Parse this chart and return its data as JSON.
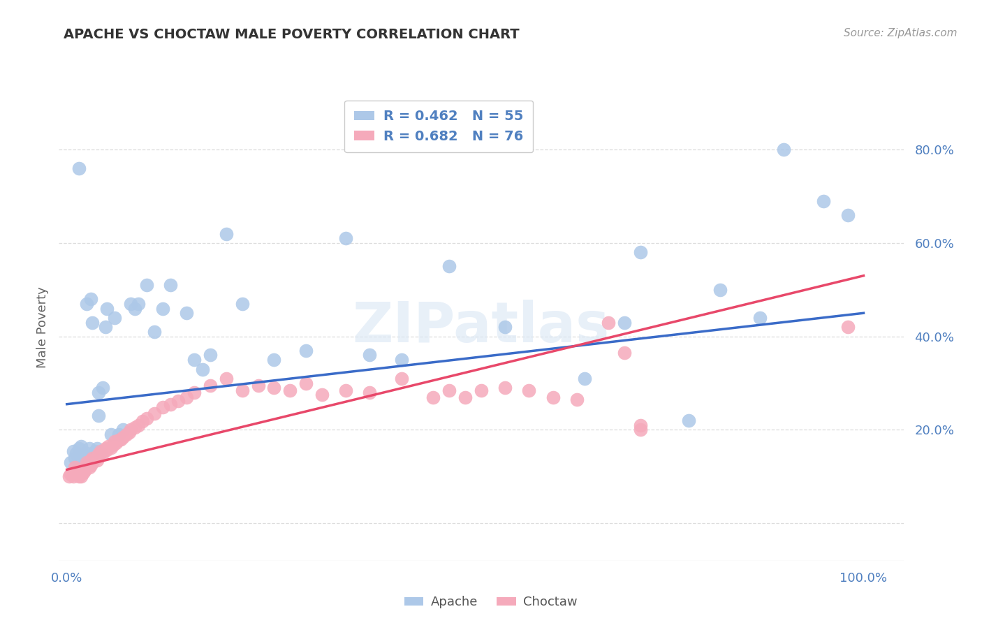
{
  "title": "APACHE VS CHOCTAW MALE POVERTY CORRELATION CHART",
  "source": "Source: ZipAtlas.com",
  "ylabel": "Male Poverty",
  "xlim": [
    -0.01,
    1.05
  ],
  "ylim": [
    -0.08,
    0.92
  ],
  "apache_R": 0.462,
  "apache_N": 55,
  "choctaw_R": 0.682,
  "choctaw_N": 76,
  "apache_color": "#adc8e8",
  "choctaw_color": "#f5aabb",
  "apache_line_color": "#3a6bc8",
  "choctaw_line_color": "#e8486a",
  "background_color": "#ffffff",
  "title_color": "#333333",
  "source_color": "#999999",
  "tick_color": "#5080c0",
  "ylabel_color": "#666666",
  "grid_color": "#dddddd",
  "apache_x": [
    0.005,
    0.008,
    0.01,
    0.012,
    0.015,
    0.015,
    0.018,
    0.02,
    0.022,
    0.025,
    0.025,
    0.028,
    0.03,
    0.032,
    0.035,
    0.038,
    0.04,
    0.04,
    0.042,
    0.045,
    0.048,
    0.05,
    0.055,
    0.06,
    0.065,
    0.07,
    0.08,
    0.085,
    0.09,
    0.1,
    0.11,
    0.12,
    0.13,
    0.15,
    0.16,
    0.17,
    0.18,
    0.2,
    0.22,
    0.26,
    0.3,
    0.35,
    0.38,
    0.42,
    0.48,
    0.55,
    0.65,
    0.7,
    0.72,
    0.78,
    0.82,
    0.87,
    0.9,
    0.95,
    0.98
  ],
  "apache_y": [
    0.13,
    0.155,
    0.14,
    0.15,
    0.76,
    0.16,
    0.165,
    0.14,
    0.145,
    0.47,
    0.15,
    0.16,
    0.48,
    0.43,
    0.155,
    0.16,
    0.28,
    0.23,
    0.15,
    0.29,
    0.42,
    0.46,
    0.19,
    0.44,
    0.19,
    0.2,
    0.47,
    0.46,
    0.47,
    0.51,
    0.41,
    0.46,
    0.51,
    0.45,
    0.35,
    0.33,
    0.36,
    0.62,
    0.47,
    0.35,
    0.37,
    0.61,
    0.36,
    0.35,
    0.55,
    0.42,
    0.31,
    0.43,
    0.58,
    0.22,
    0.5,
    0.44,
    0.8,
    0.69,
    0.66
  ],
  "choctaw_x": [
    0.003,
    0.005,
    0.008,
    0.01,
    0.01,
    0.012,
    0.013,
    0.015,
    0.015,
    0.018,
    0.018,
    0.02,
    0.02,
    0.022,
    0.022,
    0.025,
    0.025,
    0.028,
    0.028,
    0.03,
    0.03,
    0.032,
    0.032,
    0.035,
    0.038,
    0.04,
    0.04,
    0.042,
    0.045,
    0.048,
    0.05,
    0.052,
    0.055,
    0.058,
    0.06,
    0.062,
    0.065,
    0.068,
    0.07,
    0.075,
    0.078,
    0.08,
    0.085,
    0.09,
    0.095,
    0.1,
    0.11,
    0.12,
    0.13,
    0.14,
    0.15,
    0.16,
    0.18,
    0.2,
    0.22,
    0.24,
    0.26,
    0.28,
    0.3,
    0.32,
    0.35,
    0.38,
    0.42,
    0.46,
    0.48,
    0.5,
    0.52,
    0.55,
    0.58,
    0.61,
    0.64,
    0.68,
    0.7,
    0.72,
    0.72,
    0.98
  ],
  "choctaw_y": [
    0.1,
    0.105,
    0.1,
    0.11,
    0.12,
    0.105,
    0.11,
    0.1,
    0.115,
    0.1,
    0.108,
    0.108,
    0.115,
    0.112,
    0.118,
    0.125,
    0.13,
    0.12,
    0.128,
    0.125,
    0.135,
    0.13,
    0.14,
    0.138,
    0.135,
    0.142,
    0.148,
    0.155,
    0.15,
    0.16,
    0.158,
    0.165,
    0.162,
    0.168,
    0.175,
    0.172,
    0.178,
    0.18,
    0.185,
    0.19,
    0.195,
    0.2,
    0.205,
    0.21,
    0.218,
    0.225,
    0.235,
    0.248,
    0.255,
    0.262,
    0.27,
    0.28,
    0.295,
    0.31,
    0.285,
    0.295,
    0.29,
    0.285,
    0.3,
    0.275,
    0.285,
    0.28,
    0.31,
    0.27,
    0.285,
    0.27,
    0.285,
    0.29,
    0.285,
    0.27,
    0.265,
    0.43,
    0.365,
    0.21,
    0.2,
    0.42
  ],
  "apache_line_x0": 0.0,
  "apache_line_y0": 0.255,
  "apache_line_x1": 1.0,
  "apache_line_y1": 0.45,
  "choctaw_line_x0": 0.0,
  "choctaw_line_y0": 0.115,
  "choctaw_line_x1": 1.0,
  "choctaw_line_y1": 0.53
}
